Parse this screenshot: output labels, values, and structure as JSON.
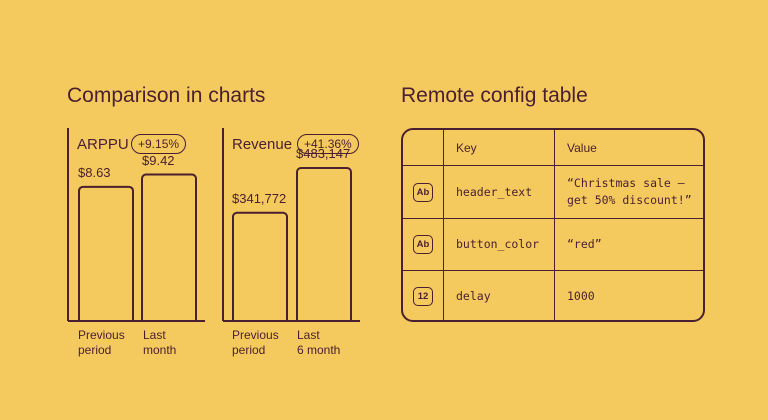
{
  "sections": {
    "charts_title": "Comparison in charts",
    "table_title": "Remote config table"
  },
  "chart_data": [
    {
      "type": "bar",
      "title": "ARPPU",
      "badge": "+9.15%",
      "categories": [
        "Previous\nperiod",
        "Last\nmonth"
      ],
      "values": [
        8.63,
        9.42
      ],
      "value_labels": [
        "$8.63",
        "$9.42"
      ],
      "ylim": [
        0,
        11
      ]
    },
    {
      "type": "bar",
      "title": "Revenue",
      "badge": "+41.36%",
      "categories": [
        "Previous\nperiod",
        "Last\n6 month"
      ],
      "values": [
        341772,
        483147
      ],
      "value_labels": [
        "$341,772",
        "$483,147"
      ],
      "ylim": [
        0,
        540000
      ]
    }
  ],
  "table": {
    "headers": {
      "key": "Key",
      "value": "Value"
    },
    "rows": [
      {
        "type_icon": "string-type-icon",
        "type_label": "Ab",
        "key": "header_text",
        "value": "“Christmas sale — get 50% discount!”"
      },
      {
        "type_icon": "string-type-icon",
        "type_label": "Ab",
        "key": "button_color",
        "value": "“red”"
      },
      {
        "type_icon": "number-type-icon",
        "type_label": "12",
        "key": "delay",
        "value": "1000"
      }
    ]
  },
  "colors": {
    "background": "#F4C95D",
    "ink": "#4A1F30"
  }
}
